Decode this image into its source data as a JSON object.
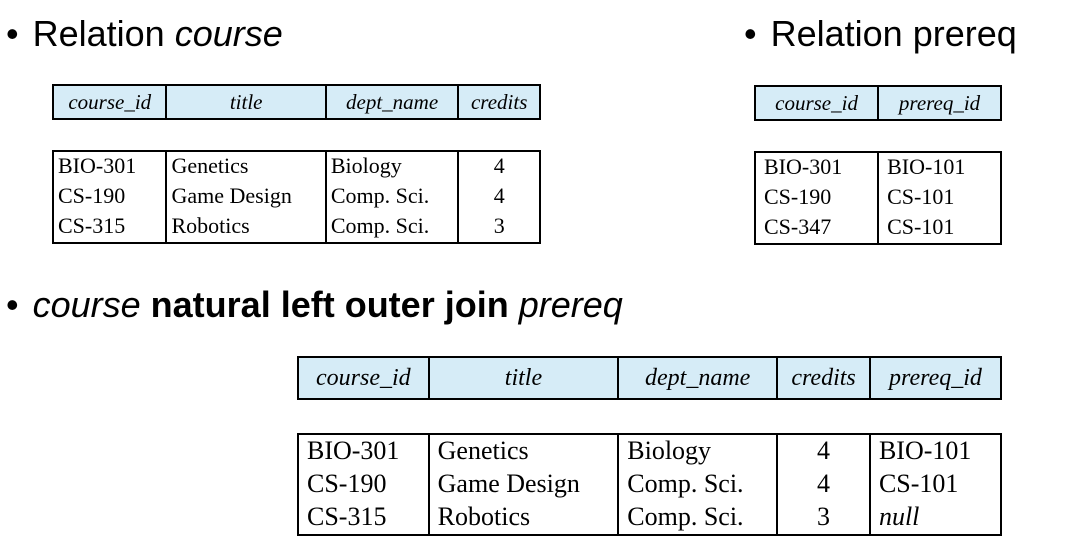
{
  "heading_course": {
    "bullet": "•",
    "prefix": "Relation ",
    "name": "course"
  },
  "heading_prereq": {
    "bullet": "•",
    "text": "Relation prereq"
  },
  "heading_join": {
    "bullet": "•",
    "left": "course",
    "op": " natural left outer join ",
    "right": "prereq"
  },
  "course_table": {
    "headers": [
      "course_id",
      "title",
      "dept_name",
      "credits"
    ],
    "rows": [
      [
        "BIO-301",
        "Genetics",
        "Biology",
        "4"
      ],
      [
        "CS-190",
        "Game Design",
        "Comp. Sci.",
        "4"
      ],
      [
        "CS-315",
        "Robotics",
        "Comp. Sci.",
        "3"
      ]
    ]
  },
  "prereq_table": {
    "headers": [
      "course_id",
      "prereq_id"
    ],
    "rows": [
      [
        "BIO-301",
        "BIO-101"
      ],
      [
        "CS-190",
        "CS-101"
      ],
      [
        "CS-347",
        "CS-101"
      ]
    ]
  },
  "result_table": {
    "headers": [
      "course_id",
      "title",
      "dept_name",
      "credits",
      "prereq_id"
    ],
    "rows": [
      [
        "BIO-301",
        "Genetics",
        "Biology",
        "4",
        "BIO-101"
      ],
      [
        "CS-190",
        "Game Design",
        "Comp. Sci.",
        "4",
        "CS-101"
      ],
      [
        "CS-315",
        "Robotics",
        "Comp. Sci.",
        "3",
        "null"
      ]
    ]
  }
}
